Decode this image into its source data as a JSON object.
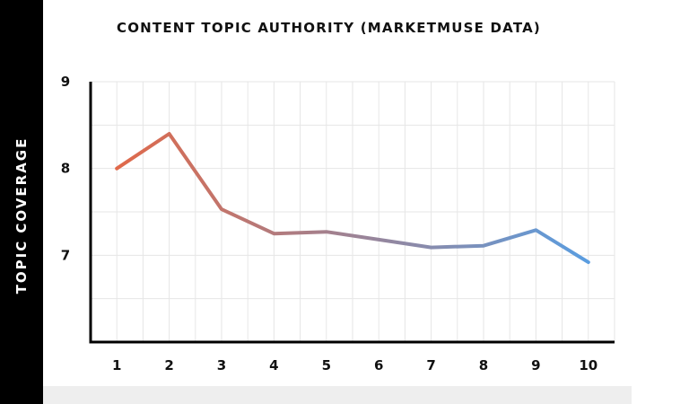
{
  "chart_data": {
    "type": "line",
    "title": "CONTENT TOPIC AUTHORITY (MARKETMUSE DATA)",
    "xlabel": "",
    "ylabel": "TOPIC COVERAGE",
    "x": [
      1,
      2,
      3,
      4,
      5,
      6,
      7,
      8,
      9,
      10
    ],
    "y": [
      8.0,
      8.4,
      7.53,
      7.25,
      7.27,
      7.18,
      7.09,
      7.11,
      7.29,
      6.92
    ],
    "xlim": [
      0.5,
      10.5
    ],
    "ylim": [
      6.0,
      9.0
    ],
    "y_ticks": [
      7,
      8,
      9
    ],
    "x_ticks": [
      1,
      2,
      3,
      4,
      5,
      6,
      7,
      8,
      9,
      10
    ],
    "grid": true,
    "line_gradient": [
      "#e0694a",
      "#5a9de0"
    ]
  }
}
